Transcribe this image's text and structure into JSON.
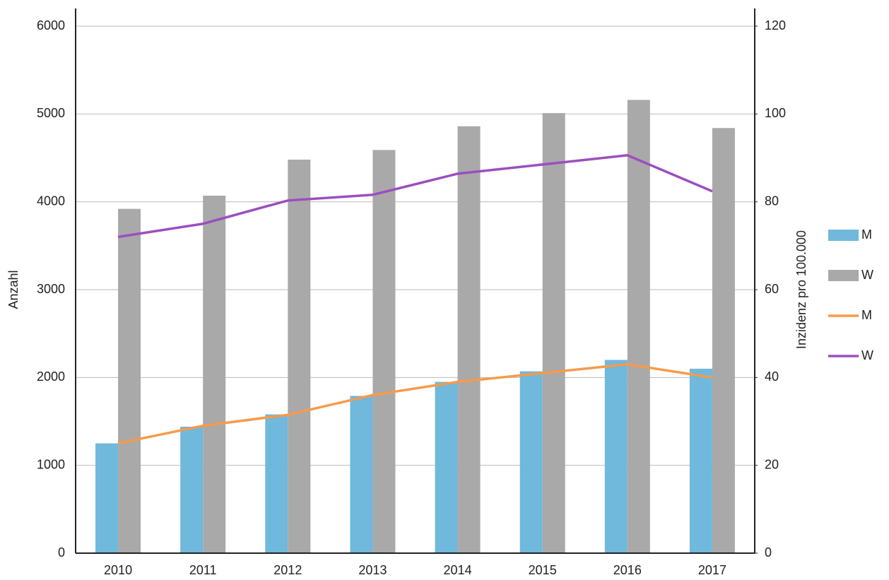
{
  "chart_data": {
    "type": "combo",
    "categories": [
      "2010",
      "2011",
      "2012",
      "2013",
      "2014",
      "2015",
      "2016",
      "2017"
    ],
    "ylabel": "Anzahl",
    "y2label": "Inzidenz pro 100.000",
    "ylim": [
      0,
      6000
    ],
    "yticks": [
      0,
      1000,
      2000,
      3000,
      4000,
      5000,
      6000
    ],
    "y2lim": [
      0,
      120
    ],
    "y2ticks": [
      0,
      20,
      40,
      60,
      80,
      100,
      120
    ],
    "grid": true,
    "legend": "right",
    "series": [
      {
        "name": "M",
        "type": "bar",
        "color": "#70b8dc",
        "values": [
          1250,
          1440,
          1580,
          1790,
          1950,
          2070,
          2200,
          2100
        ]
      },
      {
        "name": "W",
        "type": "bar",
        "color": "#a9a9a9",
        "values": [
          3920,
          4070,
          4480,
          4590,
          4860,
          5010,
          5160,
          4840
        ]
      },
      {
        "name": "M",
        "type": "line",
        "axis": "y2",
        "color": "#f79a4a",
        "values": [
          25,
          29,
          31.5,
          36,
          39,
          41,
          43,
          40
        ]
      },
      {
        "name": "W",
        "type": "line",
        "axis": "y2",
        "color": "#9b4fbf",
        "values": [
          72,
          75,
          80.3,
          81.6,
          86.4,
          88.5,
          90.6,
          82.4
        ]
      }
    ]
  }
}
